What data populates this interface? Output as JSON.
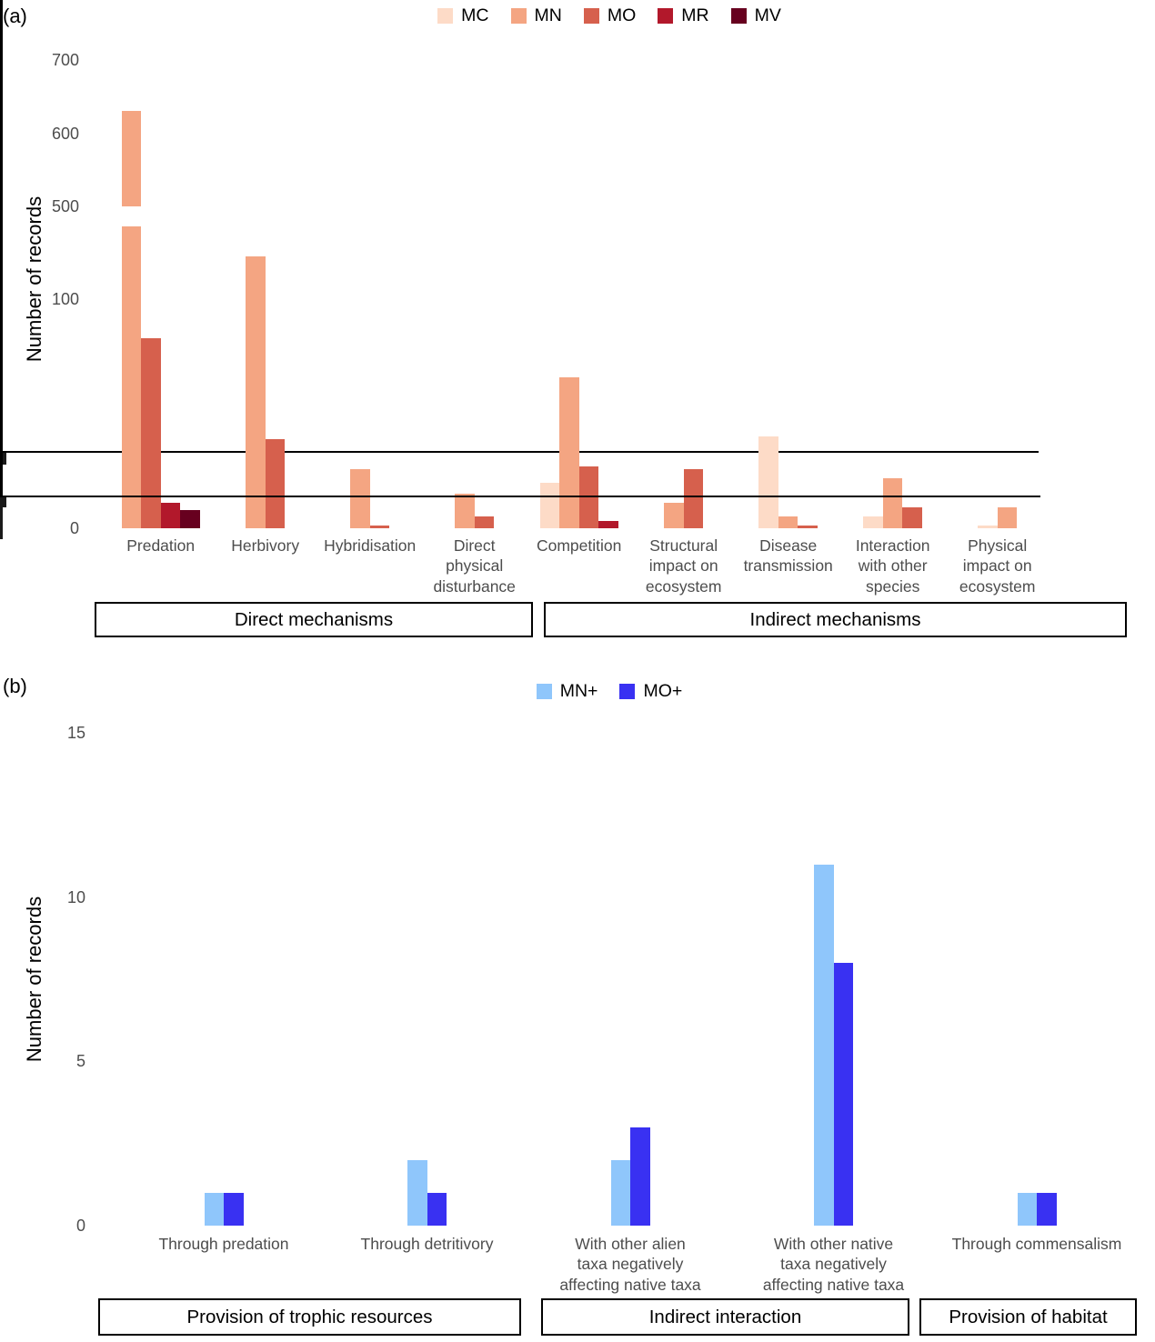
{
  "chart_data": [
    {
      "type": "bar",
      "panel_letter": "(a)",
      "ylabel": "Number of records",
      "categories": [
        "Predation",
        "Herbivory",
        "Hybridisation",
        "Direct\nphysical\ndisturbance",
        "Competition",
        "Structural\nimpact on\necosystem",
        "Disease\ntransmission",
        "Interaction\nwith other\nspecies",
        "Physical\nimpact on\necosystem"
      ],
      "series": [
        {
          "name": "MC",
          "color": "#FDDBC7",
          "values": [
            0,
            0,
            0,
            0,
            20,
            0,
            40,
            5,
            1
          ]
        },
        {
          "name": "MN",
          "color": "#F4A582",
          "values": [
            630,
            119,
            26,
            15,
            66,
            11,
            5,
            22,
            9
          ]
        },
        {
          "name": "MO",
          "color": "#D6604D",
          "values": [
            83,
            39,
            1,
            5,
            27,
            26,
            1,
            9,
            0
          ]
        },
        {
          "name": "MR",
          "color": "#B2182B",
          "values": [
            11,
            0,
            0,
            0,
            3,
            0,
            0,
            0,
            0
          ]
        },
        {
          "name": "MV",
          "color": "#67001F",
          "values": [
            8,
            0,
            0,
            0,
            0,
            0,
            0,
            0,
            0
          ]
        }
      ],
      "y_axis": {
        "broken_axis": true,
        "lower_range": [
          0,
          132
        ],
        "upper_range": [
          500,
          700
        ],
        "lower_ticks": [
          0,
          100
        ],
        "upper_ticks": [
          500,
          600,
          700
        ]
      },
      "group_boxes": [
        {
          "label": "Direct mechanisms",
          "span": [
            0,
            3
          ]
        },
        {
          "label": "Indirect mechanisms",
          "span": [
            4,
            8
          ]
        }
      ],
      "legend_position": "top",
      "grid": "off"
    },
    {
      "type": "bar",
      "panel_letter": "(b)",
      "ylabel": "Number of records",
      "categories": [
        "Through predation",
        "Through detritivory",
        "With other alien\ntaxa negatively\naffecting native taxa",
        "With other native\ntaxa negatively\naffecting native taxa",
        "Through commensalism"
      ],
      "series": [
        {
          "name": "MN+",
          "color": "#8FC6FB",
          "values": [
            1,
            2,
            2,
            11,
            1
          ]
        },
        {
          "name": "MO+",
          "color": "#3931F2",
          "values": [
            1,
            1,
            3,
            8,
            1
          ]
        }
      ],
      "y_axis": {
        "range": [
          0,
          15
        ],
        "ticks": [
          0,
          5,
          10,
          15
        ]
      },
      "group_boxes": [
        {
          "label": "Provision of trophic resources",
          "span": [
            0,
            1
          ]
        },
        {
          "label": "Indirect interaction",
          "span": [
            2,
            3
          ]
        },
        {
          "label": "Provision of habitat",
          "span": [
            4,
            4
          ]
        }
      ],
      "legend_position": "top",
      "grid": "off"
    }
  ]
}
